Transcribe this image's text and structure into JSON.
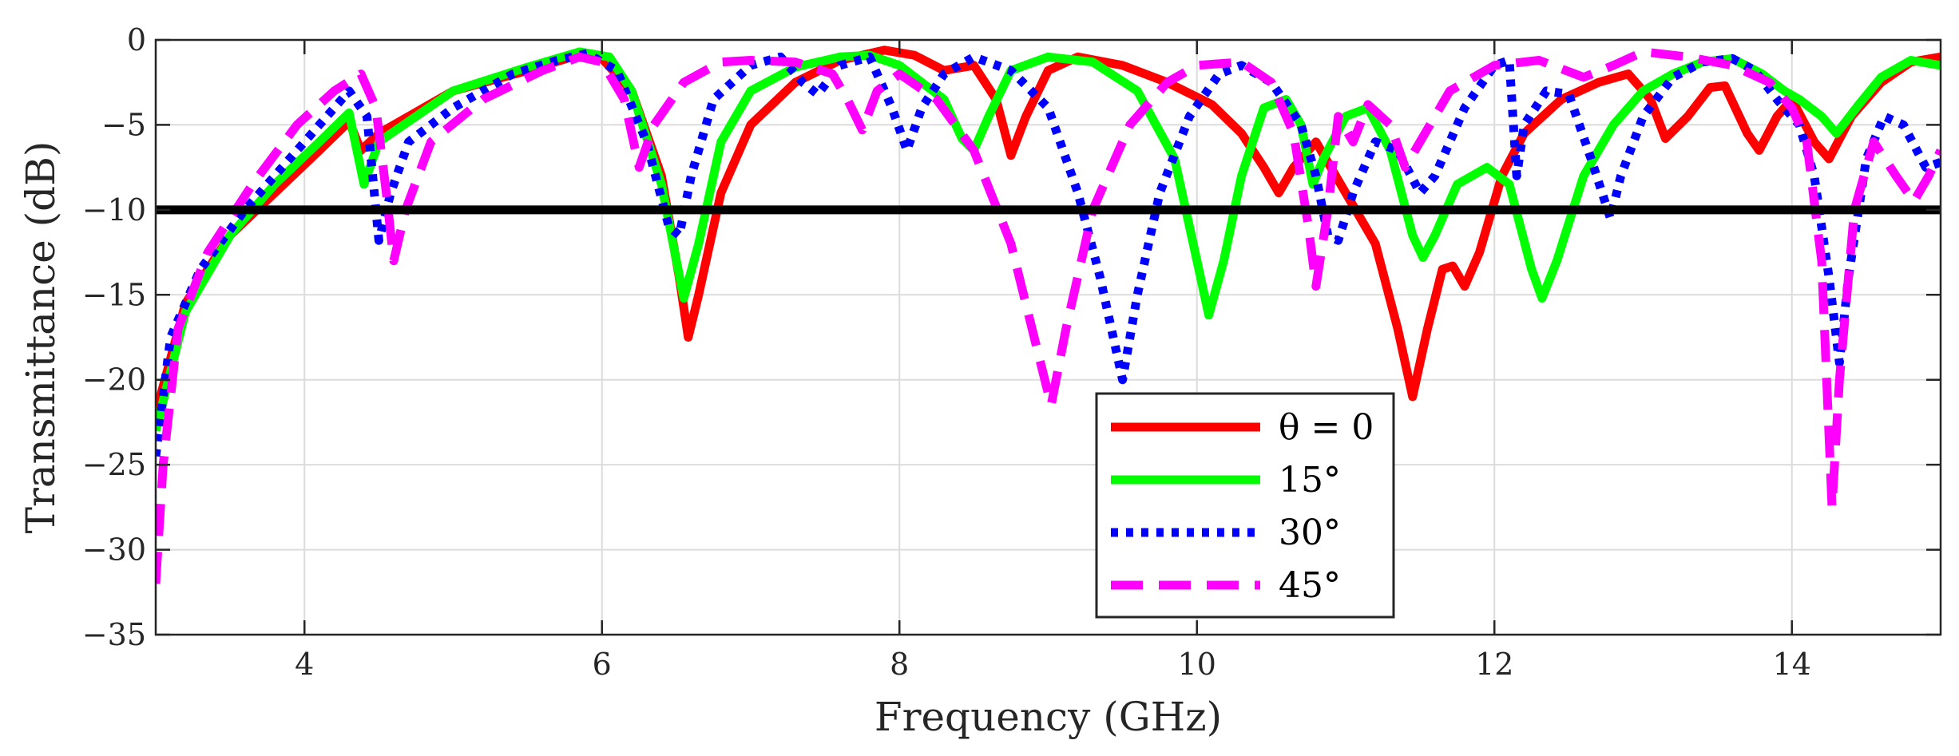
{
  "chart_data": {
    "type": "line",
    "xlabel": "Frequency (GHz)",
    "ylabel": "Transmittance (dB)",
    "xlim": [
      3,
      15
    ],
    "ylim": [
      -35,
      0
    ],
    "xticks": [
      4,
      6,
      8,
      10,
      12,
      14
    ],
    "yticks": [
      0,
      -5,
      -10,
      -15,
      -20,
      -25,
      -30,
      -35
    ],
    "xtick_labels": [
      "4",
      "6",
      "8",
      "10",
      "12",
      "14"
    ],
    "ytick_labels": [
      "0",
      "−5",
      "−10",
      "−15",
      "−20",
      "−25",
      "−30",
      "−35"
    ],
    "grid": true,
    "legend_position": "bottom-center",
    "threshold": {
      "y": -10,
      "color": "#000000"
    },
    "series": [
      {
        "name": "θ = 0",
        "color": "#ff0000",
        "style": "solid",
        "points": [
          [
            3.0,
            -22
          ],
          [
            3.2,
            -15.5
          ],
          [
            3.5,
            -11.5
          ],
          [
            3.8,
            -9
          ],
          [
            4.1,
            -6.5
          ],
          [
            4.3,
            -4.8
          ],
          [
            4.38,
            -6.5
          ],
          [
            4.5,
            -5.5
          ],
          [
            5.0,
            -3
          ],
          [
            5.5,
            -1.8
          ],
          [
            5.8,
            -1.0
          ],
          [
            6.0,
            -1.1
          ],
          [
            6.2,
            -3
          ],
          [
            6.4,
            -8
          ],
          [
            6.52,
            -14
          ],
          [
            6.58,
            -17.5
          ],
          [
            6.65,
            -15
          ],
          [
            6.8,
            -9
          ],
          [
            7.0,
            -5
          ],
          [
            7.3,
            -2.5
          ],
          [
            7.6,
            -1.2
          ],
          [
            7.9,
            -0.6
          ],
          [
            8.1,
            -0.9
          ],
          [
            8.3,
            -1.8
          ],
          [
            8.5,
            -1.5
          ],
          [
            8.65,
            -3.5
          ],
          [
            8.75,
            -6.8
          ],
          [
            8.85,
            -4.5
          ],
          [
            9.0,
            -1.8
          ],
          [
            9.2,
            -1.0
          ],
          [
            9.5,
            -1.5
          ],
          [
            9.8,
            -2.5
          ],
          [
            10.1,
            -3.8
          ],
          [
            10.3,
            -5.5
          ],
          [
            10.45,
            -7.5
          ],
          [
            10.55,
            -9
          ],
          [
            10.65,
            -7.5
          ],
          [
            10.8,
            -6
          ],
          [
            10.9,
            -7.5
          ],
          [
            11.0,
            -9
          ],
          [
            11.2,
            -12
          ],
          [
            11.35,
            -17
          ],
          [
            11.45,
            -21
          ],
          [
            11.55,
            -17
          ],
          [
            11.65,
            -13.5
          ],
          [
            11.72,
            -13.3
          ],
          [
            11.8,
            -14.5
          ],
          [
            11.9,
            -12.5
          ],
          [
            12.05,
            -8
          ],
          [
            12.2,
            -5.5
          ],
          [
            12.45,
            -3.5
          ],
          [
            12.7,
            -2.5
          ],
          [
            12.9,
            -2
          ],
          [
            13.05,
            -3.5
          ],
          [
            13.15,
            -5.8
          ],
          [
            13.3,
            -4.5
          ],
          [
            13.45,
            -2.8
          ],
          [
            13.55,
            -2.7
          ],
          [
            13.7,
            -5.5
          ],
          [
            13.78,
            -6.5
          ],
          [
            13.9,
            -4.5
          ],
          [
            14.0,
            -3.5
          ],
          [
            14.15,
            -6
          ],
          [
            14.25,
            -7
          ],
          [
            14.4,
            -4.5
          ],
          [
            14.6,
            -2.5
          ],
          [
            14.8,
            -1.3
          ],
          [
            15.0,
            -1.0
          ]
        ]
      },
      {
        "name": "15°",
        "color": "#00ff00",
        "style": "solid",
        "points": [
          [
            3.0,
            -23
          ],
          [
            3.2,
            -16
          ],
          [
            3.5,
            -11.5
          ],
          [
            3.8,
            -8.5
          ],
          [
            4.1,
            -6
          ],
          [
            4.3,
            -4.3
          ],
          [
            4.4,
            -8.5
          ],
          [
            4.5,
            -6
          ],
          [
            5.0,
            -3
          ],
          [
            5.5,
            -1.6
          ],
          [
            5.85,
            -0.7
          ],
          [
            6.05,
            -1.0
          ],
          [
            6.2,
            -3
          ],
          [
            6.4,
            -8.5
          ],
          [
            6.55,
            -15.2
          ],
          [
            6.65,
            -12
          ],
          [
            6.8,
            -6
          ],
          [
            7.0,
            -3
          ],
          [
            7.3,
            -1.6
          ],
          [
            7.6,
            -1.0
          ],
          [
            7.8,
            -0.9
          ],
          [
            8.0,
            -1.5
          ],
          [
            8.15,
            -2.5
          ],
          [
            8.3,
            -3.5
          ],
          [
            8.42,
            -5.8
          ],
          [
            8.5,
            -6.5
          ],
          [
            8.6,
            -4.5
          ],
          [
            8.75,
            -1.8
          ],
          [
            9.0,
            -1.0
          ],
          [
            9.3,
            -1.3
          ],
          [
            9.6,
            -3
          ],
          [
            9.85,
            -7
          ],
          [
            10.0,
            -13
          ],
          [
            10.08,
            -16.2
          ],
          [
            10.18,
            -13
          ],
          [
            10.3,
            -8
          ],
          [
            10.45,
            -4
          ],
          [
            10.6,
            -3.5
          ],
          [
            10.7,
            -5
          ],
          [
            10.78,
            -8.5
          ],
          [
            10.85,
            -7
          ],
          [
            11.0,
            -4.5
          ],
          [
            11.15,
            -4
          ],
          [
            11.3,
            -6.5
          ],
          [
            11.45,
            -11.5
          ],
          [
            11.52,
            -12.8
          ],
          [
            11.6,
            -11.5
          ],
          [
            11.75,
            -8.5
          ],
          [
            11.95,
            -7.5
          ],
          [
            12.1,
            -8.5
          ],
          [
            12.25,
            -13.5
          ],
          [
            12.32,
            -15.2
          ],
          [
            12.42,
            -13
          ],
          [
            12.6,
            -8
          ],
          [
            12.8,
            -5
          ],
          [
            13.0,
            -3
          ],
          [
            13.2,
            -2
          ],
          [
            13.4,
            -1.3
          ],
          [
            13.6,
            -1.1
          ],
          [
            13.8,
            -2
          ],
          [
            13.95,
            -3
          ],
          [
            14.05,
            -3.5
          ],
          [
            14.2,
            -4.5
          ],
          [
            14.3,
            -5.5
          ],
          [
            14.45,
            -3.8
          ],
          [
            14.6,
            -2.2
          ],
          [
            14.8,
            -1.2
          ],
          [
            15.0,
            -1.5
          ]
        ]
      },
      {
        "name": "30°",
        "color": "#0000ff",
        "style": "dotted",
        "points": [
          [
            3.0,
            -24.5
          ],
          [
            3.1,
            -17.5
          ],
          [
            3.3,
            -13.5
          ],
          [
            3.6,
            -10
          ],
          [
            3.9,
            -7
          ],
          [
            4.15,
            -4.5
          ],
          [
            4.3,
            -3
          ],
          [
            4.42,
            -4.5
          ],
          [
            4.5,
            -11.8
          ],
          [
            4.58,
            -9
          ],
          [
            4.7,
            -6
          ],
          [
            5.0,
            -4
          ],
          [
            5.4,
            -2
          ],
          [
            5.7,
            -1.2
          ],
          [
            5.9,
            -0.8
          ],
          [
            6.1,
            -1.8
          ],
          [
            6.3,
            -6
          ],
          [
            6.45,
            -11
          ],
          [
            6.52,
            -11.5
          ],
          [
            6.6,
            -8
          ],
          [
            6.75,
            -3.5
          ],
          [
            7.0,
            -1.5
          ],
          [
            7.2,
            -1.0
          ],
          [
            7.35,
            -2.5
          ],
          [
            7.45,
            -3.2
          ],
          [
            7.6,
            -1.5
          ],
          [
            7.8,
            -1.0
          ],
          [
            7.95,
            -4
          ],
          [
            8.05,
            -6.5
          ],
          [
            8.15,
            -4
          ],
          [
            8.3,
            -2
          ],
          [
            8.5,
            -1.0
          ],
          [
            8.75,
            -1.8
          ],
          [
            9.0,
            -4
          ],
          [
            9.2,
            -9
          ],
          [
            9.35,
            -14
          ],
          [
            9.45,
            -18
          ],
          [
            9.5,
            -20
          ],
          [
            9.6,
            -15
          ],
          [
            9.75,
            -9
          ],
          [
            9.95,
            -4.5
          ],
          [
            10.15,
            -2
          ],
          [
            10.3,
            -1.5
          ],
          [
            10.5,
            -2.5
          ],
          [
            10.7,
            -5
          ],
          [
            10.8,
            -8
          ],
          [
            10.88,
            -11.5
          ],
          [
            10.95,
            -11.8
          ],
          [
            11.05,
            -9
          ],
          [
            11.2,
            -6
          ],
          [
            11.35,
            -6.5
          ],
          [
            11.5,
            -9
          ],
          [
            11.6,
            -8
          ],
          [
            11.8,
            -4
          ],
          [
            12.0,
            -1.5
          ],
          [
            12.1,
            -1.2
          ],
          [
            12.15,
            -8
          ],
          [
            12.2,
            -5
          ],
          [
            12.35,
            -3
          ],
          [
            12.5,
            -3.2
          ],
          [
            12.65,
            -7
          ],
          [
            12.78,
            -10.5
          ],
          [
            12.85,
            -8
          ],
          [
            13.0,
            -4.5
          ],
          [
            13.2,
            -2.2
          ],
          [
            13.4,
            -1.3
          ],
          [
            13.6,
            -1.1
          ],
          [
            13.75,
            -1.8
          ],
          [
            13.9,
            -3.5
          ],
          [
            14.05,
            -5
          ],
          [
            14.15,
            -8
          ],
          [
            14.25,
            -14
          ],
          [
            14.32,
            -19
          ],
          [
            14.38,
            -14
          ],
          [
            14.5,
            -7
          ],
          [
            14.62,
            -4.5
          ],
          [
            14.75,
            -5
          ],
          [
            14.9,
            -7.5
          ],
          [
            15.0,
            -7.2
          ]
        ]
      },
      {
        "name": "45°",
        "color": "#ff00ff",
        "style": "dashed",
        "points": [
          [
            3.0,
            -32
          ],
          [
            3.05,
            -25
          ],
          [
            3.15,
            -17
          ],
          [
            3.35,
            -12.5
          ],
          [
            3.65,
            -8.5
          ],
          [
            3.95,
            -5
          ],
          [
            4.2,
            -3
          ],
          [
            4.38,
            -2
          ],
          [
            4.48,
            -4
          ],
          [
            4.55,
            -9
          ],
          [
            4.6,
            -13
          ],
          [
            4.68,
            -10
          ],
          [
            4.85,
            -6
          ],
          [
            5.2,
            -3.5
          ],
          [
            5.6,
            -1.8
          ],
          [
            5.85,
            -1.0
          ],
          [
            6.0,
            -1.3
          ],
          [
            6.15,
            -3.5
          ],
          [
            6.25,
            -7.5
          ],
          [
            6.35,
            -5
          ],
          [
            6.55,
            -2.5
          ],
          [
            6.8,
            -1.3
          ],
          [
            7.0,
            -1.2
          ],
          [
            7.3,
            -1.3
          ],
          [
            7.55,
            -2
          ],
          [
            7.65,
            -3.5
          ],
          [
            7.75,
            -5.3
          ],
          [
            7.85,
            -3
          ],
          [
            8.0,
            -2
          ],
          [
            8.25,
            -3.5
          ],
          [
            8.5,
            -6.5
          ],
          [
            8.75,
            -12
          ],
          [
            8.92,
            -18
          ],
          [
            9.02,
            -21.5
          ],
          [
            9.12,
            -17
          ],
          [
            9.3,
            -10
          ],
          [
            9.55,
            -5
          ],
          [
            9.8,
            -2.5
          ],
          [
            10.0,
            -1.5
          ],
          [
            10.3,
            -1.3
          ],
          [
            10.5,
            -2.5
          ],
          [
            10.65,
            -5.5
          ],
          [
            10.75,
            -11
          ],
          [
            10.8,
            -14.5
          ],
          [
            10.88,
            -10
          ],
          [
            10.95,
            -4.5
          ],
          [
            11.05,
            -6
          ],
          [
            11.15,
            -3.8
          ],
          [
            11.3,
            -5
          ],
          [
            11.4,
            -7.5
          ],
          [
            11.5,
            -6
          ],
          [
            11.7,
            -3
          ],
          [
            12.0,
            -1.5
          ],
          [
            12.3,
            -1.2
          ],
          [
            12.6,
            -2.2
          ],
          [
            12.8,
            -1.5
          ],
          [
            13.0,
            -0.7
          ],
          [
            13.3,
            -1.0
          ],
          [
            13.6,
            -1.5
          ],
          [
            13.85,
            -2.5
          ],
          [
            14.0,
            -4
          ],
          [
            14.1,
            -6
          ],
          [
            14.2,
            -13
          ],
          [
            14.27,
            -27.5
          ],
          [
            14.32,
            -20
          ],
          [
            14.42,
            -10
          ],
          [
            14.55,
            -6
          ],
          [
            14.7,
            -8
          ],
          [
            14.82,
            -9.5
          ],
          [
            14.92,
            -8
          ],
          [
            15.0,
            -6.5
          ]
        ]
      }
    ]
  }
}
